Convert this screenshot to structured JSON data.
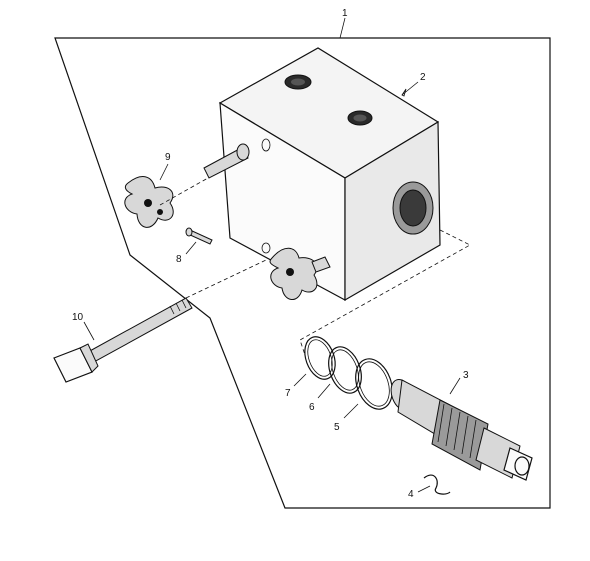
{
  "callouts": {
    "c1": "1",
    "c2": "2",
    "c3": "3",
    "c4": "4",
    "c5": "5",
    "c6": "6",
    "c7": "7",
    "c8": "8",
    "c9": "9",
    "c10": "10"
  }
}
